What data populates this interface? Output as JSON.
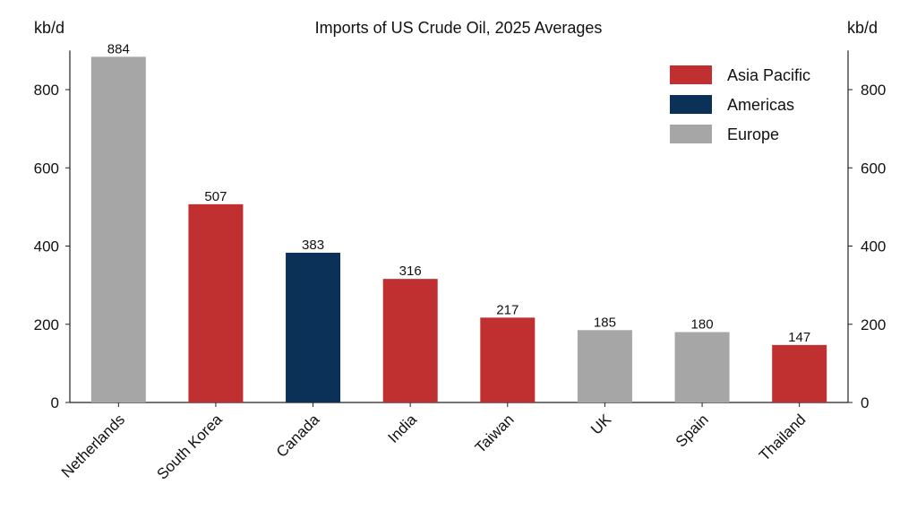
{
  "chart_data": {
    "type": "bar",
    "title": "Imports of US Crude Oil, 2025 Averages",
    "ylabel_left": "kb/d",
    "ylabel_right": "kb/d",
    "xlabel": "",
    "ylim": [
      0,
      900
    ],
    "yticks": [
      0,
      200,
      400,
      600,
      800
    ],
    "grid": false,
    "legend_position": "top-right",
    "categories": [
      "Netherlands",
      "South Korea",
      "Canada",
      "India",
      "Taiwan",
      "UK",
      "Spain",
      "Thailand"
    ],
    "values": [
      884,
      507,
      383,
      316,
      217,
      185,
      180,
      147
    ],
    "regions": [
      "Europe",
      "Asia Pacific",
      "Americas",
      "Asia Pacific",
      "Asia Pacific",
      "Europe",
      "Europe",
      "Asia Pacific"
    ],
    "legend": [
      {
        "name": "Asia Pacific",
        "color": "#c03030"
      },
      {
        "name": "Americas",
        "color": "#0c3158"
      },
      {
        "name": "Europe",
        "color": "#a6a6a6"
      }
    ]
  }
}
